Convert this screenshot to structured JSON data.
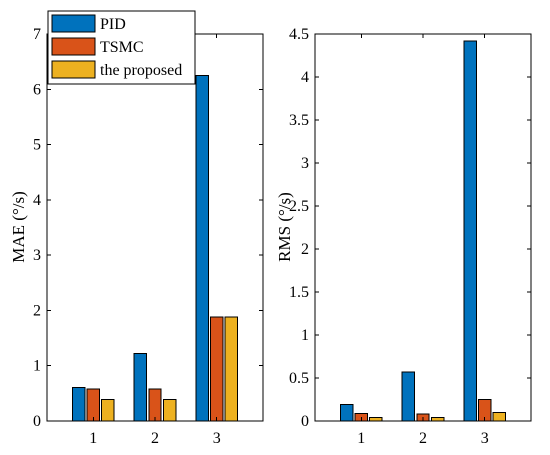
{
  "chart_data": [
    {
      "type": "bar",
      "categories": [
        "1",
        "2",
        "3"
      ],
      "series": [
        {
          "name": "PID",
          "values": [
            0.61,
            1.22,
            6.25
          ]
        },
        {
          "name": "TSMC",
          "values": [
            0.58,
            0.58,
            1.88
          ]
        },
        {
          "name": "the proposed",
          "values": [
            0.39,
            0.39,
            1.88
          ]
        }
      ],
      "xlabel": "",
      "ylabel": "MAE (°/s)",
      "ylim": [
        0,
        7
      ],
      "yticks": [
        "0",
        "1",
        "2",
        "3",
        "4",
        "5",
        "6",
        "7"
      ],
      "grid": false,
      "legend": "top-left"
    },
    {
      "type": "bar",
      "categories": [
        "1",
        "2",
        "3"
      ],
      "series": [
        {
          "name": "PID",
          "values": [
            0.19,
            0.57,
            4.42
          ]
        },
        {
          "name": "TSMC",
          "values": [
            0.09,
            0.08,
            0.25
          ]
        },
        {
          "name": "the proposed",
          "values": [
            0.04,
            0.04,
            0.1
          ]
        }
      ],
      "xlabel": "",
      "ylabel": "RMS (°/s)",
      "ylim": [
        0,
        4.5
      ],
      "yticks": [
        "0",
        "0.5",
        "1",
        "1.5",
        "2",
        "2.5",
        "3",
        "3.5",
        "4",
        "4.5"
      ],
      "grid": false,
      "legend": "none"
    }
  ],
  "colors": {
    "PID": "#0072BD",
    "TSMC": "#D95319",
    "the proposed": "#EDB120"
  }
}
